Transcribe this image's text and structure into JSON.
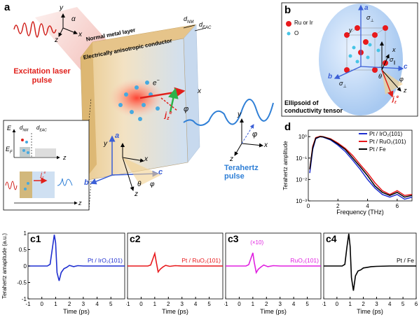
{
  "panel_a": {
    "label": "a",
    "layer_normal_metal": "Normal metal layer",
    "layer_eac": "Electrically anisotropic conductor",
    "d_nm": "d",
    "d_nm_sub": "NM",
    "d_eac": "d",
    "d_eac_sub": "EAC",
    "excitation_line1": "Excitation laser",
    "excitation_line2": "pulse",
    "terahertz_pulse": "Terahertz pulse",
    "electron": "e",
    "electron_sup": "−",
    "j_label": "j",
    "j_sub": "z",
    "j_sup": "e",
    "axis_x": "x",
    "axis_y": "y",
    "axis_z": "z",
    "axis_a": "a",
    "axis_b": "b",
    "axis_c": "c",
    "alpha": "α",
    "theta": "θ",
    "phi": "φ",
    "inset_E": "E",
    "inset_EF": "E",
    "inset_EF_sub": "F",
    "inset_dnm": "d",
    "inset_dnm_sub": "NM",
    "inset_deac": "d",
    "inset_deac_sub": "EAC",
    "inset_z1": "z",
    "inset_z2": "z",
    "inset_j": "j",
    "inset_j_sub": "z",
    "inset_j_sup": "e"
  },
  "panel_b": {
    "label": "b",
    "legend_ru": "Ru or Ir",
    "legend_o": "O",
    "caption_line1": "Ellipsoid of",
    "caption_line2": "conductivity tensor",
    "sigma": "σ",
    "sigma_perp_sub": "⊥",
    "sigma_par_sub": "∥",
    "axis_a": "a",
    "axis_b": "b",
    "axis_c": "c",
    "axis_y": "y",
    "axis_x": "x",
    "axis_z": "z",
    "theta": "θ",
    "phi": "φ",
    "j_label": "j",
    "j_sub": "z",
    "j_sup": "e"
  },
  "colors": {
    "ir": "#1f2fd0",
    "ru": "#e8191c",
    "ru_x10": "#e020e0",
    "fe": "#000000",
    "laser": "#e0201b",
    "thz": "#2f7fd6"
  },
  "chart_data": [
    {
      "id": "d",
      "type": "line",
      "label": "d",
      "xlabel": "Frequency (THz)",
      "ylabel": "Terahertz amplitude",
      "xlim": [
        0,
        7
      ],
      "ylim": [
        0.001,
        2
      ],
      "yscale": "log",
      "xticks": [
        0,
        2,
        4,
        6
      ],
      "yticks": [
        "10⁻³",
        "10⁻²",
        "10⁻¹",
        "10⁰"
      ],
      "series": [
        {
          "name": "Pt / IrO₂(101)",
          "color": "#1f2fd0",
          "x": [
            0.1,
            0.3,
            0.5,
            0.8,
            1.0,
            1.5,
            2.0,
            2.5,
            3.0,
            3.5,
            4.0,
            4.5,
            5.0,
            5.5,
            6.0,
            6.5,
            7.0
          ],
          "y": [
            0.02,
            0.25,
            0.8,
            1.0,
            0.95,
            0.7,
            0.4,
            0.2,
            0.08,
            0.03,
            0.01,
            0.004,
            0.002,
            0.0015,
            0.002,
            0.0012,
            0.0015
          ]
        },
        {
          "name": "Pt / RuO₂(101)",
          "color": "#e8191c",
          "x": [
            0.1,
            0.3,
            0.5,
            0.8,
            1.0,
            1.5,
            2.0,
            2.5,
            3.0,
            3.5,
            4.0,
            4.5,
            5.0,
            5.5,
            6.0,
            6.5,
            7.0
          ],
          "y": [
            0.03,
            0.35,
            0.9,
            1.05,
            1.0,
            0.8,
            0.5,
            0.28,
            0.13,
            0.05,
            0.02,
            0.007,
            0.003,
            0.002,
            0.003,
            0.0018,
            0.002
          ]
        },
        {
          "name": "Pt / Fe",
          "color": "#000000",
          "x": [
            0.1,
            0.3,
            0.5,
            0.8,
            1.0,
            1.5,
            2.0,
            2.5,
            3.0,
            3.5,
            4.0,
            4.5,
            5.0,
            5.5,
            6.0,
            6.5,
            7.0
          ],
          "y": [
            0.03,
            0.3,
            0.85,
            1.0,
            0.98,
            0.75,
            0.45,
            0.25,
            0.1,
            0.04,
            0.015,
            0.005,
            0.0025,
            0.0018,
            0.0025,
            0.0015,
            0.0018
          ]
        }
      ]
    },
    {
      "id": "c1",
      "type": "line",
      "label": "c1",
      "series_label": "Pt / IrO₂(101)",
      "color": "#1f2fd0",
      "ylabel": "Terahertz amapitude (a.u.)",
      "xlabel": "Time (ps)",
      "xlim": [
        -1,
        6
      ],
      "ylim": [
        -1,
        1
      ],
      "xticks": [
        -1,
        0,
        1,
        2,
        3,
        4,
        5
      ],
      "yticks": [
        -1,
        -0.5,
        0,
        0.5,
        1
      ],
      "x": [
        -1,
        0.4,
        0.6,
        0.75,
        0.9,
        1.0,
        1.1,
        1.25,
        1.4,
        1.6,
        1.8,
        2.0,
        2.3,
        2.6,
        3.0,
        4.0,
        5.0,
        6.0
      ],
      "y": [
        0,
        0,
        0.05,
        0.5,
        0.95,
        0.7,
        -0.2,
        -0.45,
        -0.2,
        -0.08,
        -0.04,
        0.02,
        -0.02,
        0.01,
        0,
        0,
        0,
        0
      ]
    },
    {
      "id": "c2",
      "type": "line",
      "label": "c2",
      "series_label": "Pt / RuO₂(101)",
      "color": "#e8191c",
      "xlabel": "Time (ps)",
      "xlim": [
        -1,
        6
      ],
      "ylim": [
        -1,
        1
      ],
      "xticks": [
        -1,
        0,
        1,
        2,
        3,
        4,
        5
      ],
      "x": [
        -1,
        0.5,
        0.7,
        0.85,
        1.0,
        1.1,
        1.25,
        1.4,
        1.6,
        1.8,
        2.1,
        2.5,
        3.0,
        4.0,
        5.0,
        6.0
      ],
      "y": [
        0,
        0,
        0.03,
        0.2,
        0.38,
        0.15,
        -0.18,
        -0.1,
        -0.03,
        0.02,
        -0.01,
        0.01,
        0,
        0,
        0,
        0
      ]
    },
    {
      "id": "c3",
      "type": "line",
      "label": "c3",
      "series_label": "RuO₂(101)",
      "annotation": "(×10)",
      "color": "#e020e0",
      "xlabel": "Time (ps)",
      "xlim": [
        -1,
        6
      ],
      "ylim": [
        -1,
        1
      ],
      "xticks": [
        -1,
        0,
        1,
        2,
        3,
        4,
        5
      ],
      "x": [
        -1,
        0.5,
        0.7,
        0.85,
        1.0,
        1.1,
        1.25,
        1.4,
        1.6,
        1.8,
        2.1,
        2.5,
        3.0,
        4.0,
        5.0,
        6.0
      ],
      "y": [
        0,
        0,
        0.04,
        0.22,
        0.4,
        0.12,
        -0.2,
        -0.1,
        -0.03,
        0.03,
        -0.02,
        0.01,
        0,
        0,
        0,
        0
      ]
    },
    {
      "id": "c4",
      "type": "line",
      "label": "c4",
      "series_label": "Pt / Fe",
      "color": "#000000",
      "xlabel": "Time (ps)",
      "xlim": [
        -1,
        6
      ],
      "ylim": [
        -1,
        1
      ],
      "xticks": [
        -1,
        0,
        1,
        2,
        3,
        4,
        5,
        6
      ],
      "x": [
        -1,
        0.4,
        0.6,
        0.75,
        0.9,
        1.0,
        1.1,
        1.25,
        1.4,
        1.6,
        1.8,
        2.0,
        2.3,
        2.6,
        3.0,
        4.0,
        5.0,
        6.0
      ],
      "y": [
        0,
        0,
        0.05,
        0.55,
        0.98,
        0.6,
        -0.35,
        -0.75,
        -0.3,
        -0.15,
        -0.12,
        -0.06,
        -0.04,
        -0.02,
        -0.01,
        0,
        0,
        0
      ]
    }
  ]
}
